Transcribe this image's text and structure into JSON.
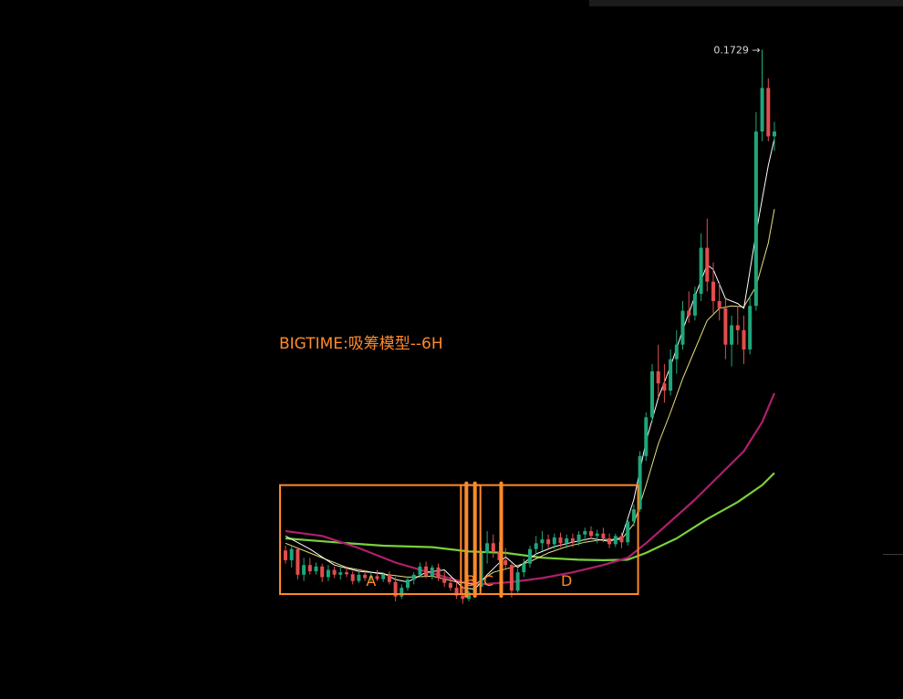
{
  "title": "BIGTIME:吸筹模型--6H",
  "chart_data": {
    "type": "candlestick",
    "title": "BIGTIME:吸筹模型--6H",
    "price_range": [
      0.046,
      0.176
    ],
    "peak_label": "0.1729 →",
    "peak_value": 0.1729,
    "colors": {
      "up": "#1fa67a",
      "down": "#e24d4d",
      "ma_fast": "#ffffff",
      "ma_mid": "#e8e27a",
      "ma_slow": "#b01e6e",
      "ma_long": "#7ad13a",
      "annotation": "#ff8a2a"
    },
    "candles": [
      [
        0.0695,
        0.0705,
        0.0668,
        0.0675
      ],
      [
        0.0675,
        0.0705,
        0.066,
        0.0698
      ],
      [
        0.0698,
        0.0702,
        0.0635,
        0.0645
      ],
      [
        0.0645,
        0.068,
        0.0632,
        0.0665
      ],
      [
        0.0665,
        0.068,
        0.0645,
        0.0652
      ],
      [
        0.0652,
        0.067,
        0.0645,
        0.0662
      ],
      [
        0.0662,
        0.0668,
        0.063,
        0.064
      ],
      [
        0.064,
        0.0665,
        0.0632,
        0.0655
      ],
      [
        0.0655,
        0.0662,
        0.0638,
        0.0645
      ],
      [
        0.0645,
        0.066,
        0.0635,
        0.065
      ],
      [
        0.065,
        0.0662,
        0.064,
        0.0646
      ],
      [
        0.0646,
        0.0652,
        0.0625,
        0.0632
      ],
      [
        0.0632,
        0.065,
        0.0628,
        0.0645
      ],
      [
        0.0645,
        0.0655,
        0.0632,
        0.0638
      ],
      [
        0.0638,
        0.065,
        0.0628,
        0.0642
      ],
      [
        0.0642,
        0.0655,
        0.0632,
        0.0636
      ],
      [
        0.0636,
        0.065,
        0.063,
        0.0645
      ],
      [
        0.0645,
        0.0652,
        0.0625,
        0.063
      ],
      [
        0.063,
        0.064,
        0.059,
        0.06
      ],
      [
        0.06,
        0.0625,
        0.0595,
        0.0618
      ],
      [
        0.0618,
        0.0642,
        0.0612,
        0.0635
      ],
      [
        0.0635,
        0.065,
        0.0625,
        0.0645
      ],
      [
        0.0645,
        0.067,
        0.064,
        0.0662
      ],
      [
        0.0662,
        0.0672,
        0.0638,
        0.0642
      ],
      [
        0.0642,
        0.0665,
        0.0635,
        0.066
      ],
      [
        0.066,
        0.0668,
        0.0632,
        0.0638
      ],
      [
        0.0638,
        0.0652,
        0.062,
        0.0628
      ],
      [
        0.0628,
        0.064,
        0.0612,
        0.0618
      ],
      [
        0.0618,
        0.063,
        0.0595,
        0.0602
      ],
      [
        0.0602,
        0.0622,
        0.0585,
        0.0595
      ],
      [
        0.0595,
        0.0612,
        0.059,
        0.0608
      ],
      [
        0.0608,
        0.0625,
        0.06,
        0.062
      ],
      [
        0.062,
        0.07,
        0.0612,
        0.069
      ],
      [
        0.069,
        0.0735,
        0.0668,
        0.071
      ],
      [
        0.071,
        0.0728,
        0.068,
        0.0692
      ],
      [
        0.0692,
        0.0712,
        0.0668,
        0.0675
      ],
      [
        0.0675,
        0.07,
        0.0658,
        0.0665
      ],
      [
        0.0665,
        0.0668,
        0.0598,
        0.0612
      ],
      [
        0.0612,
        0.0658,
        0.0608,
        0.065
      ],
      [
        0.065,
        0.0678,
        0.064,
        0.0668
      ],
      [
        0.0668,
        0.0705,
        0.066,
        0.0698
      ],
      [
        0.0698,
        0.0725,
        0.0685,
        0.071
      ],
      [
        0.071,
        0.0735,
        0.0695,
        0.0718
      ],
      [
        0.0718,
        0.0728,
        0.07,
        0.0708
      ],
      [
        0.0708,
        0.073,
        0.0698,
        0.0722
      ],
      [
        0.0722,
        0.0732,
        0.0702,
        0.071
      ],
      [
        0.071,
        0.0728,
        0.07,
        0.072
      ],
      [
        0.072,
        0.073,
        0.0702,
        0.0712
      ],
      [
        0.0712,
        0.0735,
        0.0705,
        0.0728
      ],
      [
        0.0728,
        0.0742,
        0.0715,
        0.0735
      ],
      [
        0.0735,
        0.0745,
        0.0718,
        0.0725
      ],
      [
        0.0725,
        0.0738,
        0.071,
        0.073
      ],
      [
        0.073,
        0.0742,
        0.0712,
        0.072
      ],
      [
        0.072,
        0.073,
        0.07,
        0.0708
      ],
      [
        0.0708,
        0.073,
        0.0702,
        0.0725
      ],
      [
        0.0725,
        0.0732,
        0.07,
        0.0712
      ],
      [
        0.0712,
        0.076,
        0.0705,
        0.0755
      ],
      [
        0.0755,
        0.079,
        0.0745,
        0.078
      ],
      [
        0.078,
        0.09,
        0.0775,
        0.089
      ],
      [
        0.089,
        0.098,
        0.088,
        0.097
      ],
      [
        0.097,
        0.108,
        0.096,
        0.1065
      ],
      [
        0.1065,
        0.112,
        0.101,
        0.104
      ],
      [
        0.104,
        0.108,
        0.1,
        0.1025
      ],
      [
        0.1025,
        0.111,
        0.1015,
        0.109
      ],
      [
        0.109,
        0.115,
        0.106,
        0.112
      ],
      [
        0.112,
        0.121,
        0.111,
        0.119
      ],
      [
        0.119,
        0.123,
        0.1165,
        0.118
      ],
      [
        0.118,
        0.124,
        0.117,
        0.1225
      ],
      [
        0.1225,
        0.135,
        0.121,
        0.132
      ],
      [
        0.132,
        0.138,
        0.123,
        0.125
      ],
      [
        0.125,
        0.129,
        0.1185,
        0.121
      ],
      [
        0.121,
        0.125,
        0.117,
        0.1195
      ],
      [
        0.1195,
        0.1215,
        0.109,
        0.112
      ],
      [
        0.112,
        0.118,
        0.1075,
        0.116
      ],
      [
        0.116,
        0.12,
        0.112,
        0.115
      ],
      [
        0.115,
        0.118,
        0.108,
        0.111
      ],
      [
        0.111,
        0.122,
        0.11,
        0.12
      ],
      [
        0.12,
        0.16,
        0.119,
        0.156
      ],
      [
        0.156,
        0.1729,
        0.154,
        0.165
      ],
      [
        0.165,
        0.167,
        0.154,
        0.155
      ],
      [
        0.155,
        0.158,
        0.152,
        0.156
      ]
    ],
    "moving_averages": {
      "fast": [
        [
          0.0725,
          0
        ],
        [
          0.0698,
          4
        ],
        [
          0.0665,
          8
        ],
        [
          0.0652,
          12
        ],
        [
          0.0648,
          16
        ],
        [
          0.0635,
          18
        ],
        [
          0.063,
          20
        ],
        [
          0.065,
          23
        ],
        [
          0.0655,
          26
        ],
        [
          0.0618,
          29
        ],
        [
          0.0615,
          31
        ],
        [
          0.0645,
          33
        ],
        [
          0.0682,
          36
        ],
        [
          0.066,
          38
        ],
        [
          0.0688,
          41
        ],
        [
          0.0703,
          44
        ],
        [
          0.0712,
          47
        ],
        [
          0.072,
          50
        ],
        [
          0.0714,
          53
        ],
        [
          0.0722,
          55
        ],
        [
          0.08,
          57
        ],
        [
          0.092,
          59
        ],
        [
          0.101,
          61
        ],
        [
          0.1075,
          63
        ],
        [
          0.115,
          65
        ],
        [
          0.122,
          67
        ],
        [
          0.1285,
          69
        ],
        [
          0.1275,
          70
        ],
        [
          0.1215,
          72
        ],
        [
          0.1205,
          74
        ],
        [
          0.1195,
          75
        ],
        [
          0.135,
          77
        ],
        [
          0.149,
          79
        ],
        [
          0.1545,
          80
        ]
      ],
      "mid": [
        [
          0.071,
          0
        ],
        [
          0.0685,
          5
        ],
        [
          0.066,
          10
        ],
        [
          0.0648,
          15
        ],
        [
          0.064,
          20
        ],
        [
          0.0642,
          24
        ],
        [
          0.063,
          28
        ],
        [
          0.0625,
          31
        ],
        [
          0.065,
          34
        ],
        [
          0.066,
          37
        ],
        [
          0.0672,
          40
        ],
        [
          0.069,
          43
        ],
        [
          0.0703,
          46
        ],
        [
          0.0712,
          49
        ],
        [
          0.0718,
          52
        ],
        [
          0.0718,
          55
        ],
        [
          0.075,
          57
        ],
        [
          0.083,
          59
        ],
        [
          0.0915,
          61
        ],
        [
          0.098,
          63
        ],
        [
          0.105,
          65
        ],
        [
          0.111,
          67
        ],
        [
          0.117,
          69
        ],
        [
          0.1195,
          71
        ],
        [
          0.12,
          73
        ],
        [
          0.1198,
          75
        ],
        [
          0.124,
          77
        ],
        [
          0.133,
          79
        ],
        [
          0.14,
          80
        ]
      ],
      "slow": [
        [
          0.0735,
          0
        ],
        [
          0.0725,
          6
        ],
        [
          0.07,
          12
        ],
        [
          0.067,
          18
        ],
        [
          0.0648,
          24
        ],
        [
          0.063,
          29
        ],
        [
          0.0625,
          32
        ],
        [
          0.063,
          37
        ],
        [
          0.0638,
          42
        ],
        [
          0.065,
          47
        ],
        [
          0.0665,
          52
        ],
        [
          0.068,
          56
        ],
        [
          0.071,
          59
        ],
        [
          0.0755,
          63
        ],
        [
          0.08,
          67
        ],
        [
          0.085,
          71
        ],
        [
          0.09,
          75
        ],
        [
          0.096,
          78
        ],
        [
          0.102,
          80
        ]
      ],
      "long": [
        [
          0.072,
          0
        ],
        [
          0.0712,
          8
        ],
        [
          0.0705,
          16
        ],
        [
          0.0702,
          24
        ],
        [
          0.0693,
          30
        ],
        [
          0.069,
          36
        ],
        [
          0.068,
          42
        ],
        [
          0.0676,
          48
        ],
        [
          0.0675,
          52
        ],
        [
          0.0676,
          56
        ],
        [
          0.069,
          59
        ],
        [
          0.072,
          64
        ],
        [
          0.076,
          69
        ],
        [
          0.0795,
          74
        ],
        [
          0.083,
          78
        ],
        [
          0.0855,
          80
        ]
      ]
    },
    "annotations": {
      "boxes": [
        {
          "name": "zone-box-overall",
          "from": 0.0,
          "to": 56.8,
          "top": 0.083,
          "bottom": 0.0605
        },
        {
          "name": "zone-box-b",
          "from": 29.6,
          "to": 31.0,
          "top": 0.083,
          "bottom": 0.0605
        }
      ],
      "bars": [
        {
          "name": "zone-bar-b-left",
          "at": 29.6
        },
        {
          "name": "zone-bar-b-right",
          "at": 31.0
        },
        {
          "name": "zone-bar-c",
          "at": 35.3
        }
      ],
      "labels": [
        {
          "name": "zone-label-a",
          "text": "A",
          "at": 14.0
        },
        {
          "name": "zone-label-b",
          "text": "B",
          "at": 30.3
        },
        {
          "name": "zone-label-c",
          "text": "C",
          "at": 33.2
        },
        {
          "name": "zone-label-d",
          "text": "D",
          "at": 46.0
        }
      ]
    }
  }
}
